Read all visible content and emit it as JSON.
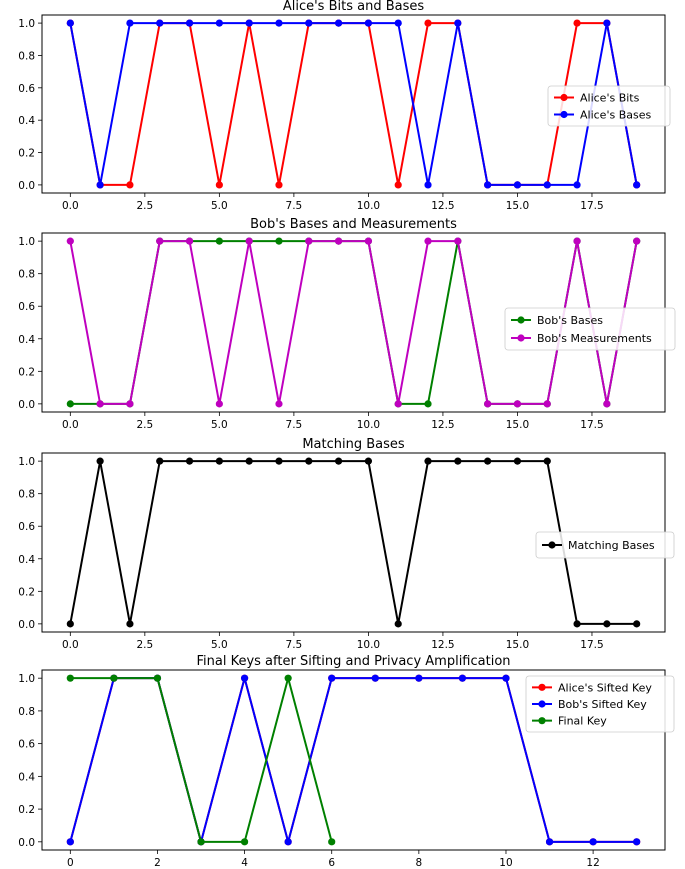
{
  "chart_data": [
    {
      "type": "line",
      "title": "Alice's Bits and Bases",
      "xlabel": "",
      "ylabel": "",
      "xlim": [
        -0.95,
        19.95
      ],
      "ylim": [
        -0.05,
        1.05
      ],
      "xticks": [
        0.0,
        2.5,
        5.0,
        7.5,
        10.0,
        12.5,
        15.0,
        17.5
      ],
      "xtick_labels": [
        "0.0",
        "2.5",
        "5.0",
        "7.5",
        "10.0",
        "12.5",
        "15.0",
        "17.5"
      ],
      "yticks": [
        0.0,
        0.2,
        0.4,
        0.6,
        0.8,
        1.0
      ],
      "ytick_labels": [
        "0.0",
        "0.2",
        "0.4",
        "0.6",
        "0.8",
        "1.0"
      ],
      "legend_position": "center-right",
      "series": [
        {
          "name": "Alice's Bits",
          "color": "#ff0000",
          "x": [
            0,
            1,
            2,
            3,
            4,
            5,
            6,
            7,
            8,
            9,
            10,
            11,
            12,
            13,
            14,
            15,
            16,
            17,
            18,
            19
          ],
          "values": [
            1,
            0,
            0,
            1,
            1,
            0,
            1,
            0,
            1,
            1,
            1,
            0,
            1,
            1,
            0,
            0,
            0,
            1,
            1,
            0
          ]
        },
        {
          "name": "Alice's Bases",
          "color": "#0000ff",
          "x": [
            0,
            1,
            2,
            3,
            4,
            5,
            6,
            7,
            8,
            9,
            10,
            11,
            12,
            13,
            14,
            15,
            16,
            17,
            18,
            19
          ],
          "values": [
            1,
            0,
            1,
            1,
            1,
            1,
            1,
            1,
            1,
            1,
            1,
            1,
            0,
            1,
            0,
            0,
            0,
            0,
            1,
            0
          ]
        }
      ]
    },
    {
      "type": "line",
      "title": "Bob's Bases and Measurements",
      "xlabel": "",
      "ylabel": "",
      "xlim": [
        -0.95,
        19.95
      ],
      "ylim": [
        -0.05,
        1.05
      ],
      "xticks": [
        0.0,
        2.5,
        5.0,
        7.5,
        10.0,
        12.5,
        15.0,
        17.5
      ],
      "xtick_labels": [
        "0.0",
        "2.5",
        "5.0",
        "7.5",
        "10.0",
        "12.5",
        "15.0",
        "17.5"
      ],
      "yticks": [
        0.0,
        0.2,
        0.4,
        0.6,
        0.8,
        1.0
      ],
      "ytick_labels": [
        "0.0",
        "0.2",
        "0.4",
        "0.6",
        "0.8",
        "1.0"
      ],
      "legend_position": "center-right",
      "series": [
        {
          "name": "Bob's Bases",
          "color": "#008000",
          "x": [
            0,
            1,
            2,
            3,
            4,
            5,
            6,
            7,
            8,
            9,
            10,
            11,
            12,
            13,
            14,
            15,
            16,
            17,
            18,
            19
          ],
          "values": [
            0,
            0,
            0,
            1,
            1,
            1,
            1,
            1,
            1,
            1,
            1,
            0,
            0,
            1,
            0,
            0,
            0,
            1,
            0,
            1
          ]
        },
        {
          "name": "Bob's Measurements",
          "color": "#bf00bf",
          "x": [
            0,
            1,
            2,
            3,
            4,
            5,
            6,
            7,
            8,
            9,
            10,
            11,
            12,
            13,
            14,
            15,
            16,
            17,
            18,
            19
          ],
          "values": [
            1,
            0,
            0,
            1,
            1,
            0,
            1,
            0,
            1,
            1,
            1,
            0,
            1,
            1,
            0,
            0,
            0,
            1,
            0,
            1
          ]
        }
      ]
    },
    {
      "type": "line",
      "title": "Matching Bases",
      "xlabel": "",
      "ylabel": "",
      "xlim": [
        -0.95,
        19.95
      ],
      "ylim": [
        -0.05,
        1.05
      ],
      "xticks": [
        0.0,
        2.5,
        5.0,
        7.5,
        10.0,
        12.5,
        15.0,
        17.5
      ],
      "xtick_labels": [
        "0.0",
        "2.5",
        "5.0",
        "7.5",
        "10.0",
        "12.5",
        "15.0",
        "17.5"
      ],
      "yticks": [
        0.0,
        0.2,
        0.4,
        0.6,
        0.8,
        1.0
      ],
      "ytick_labels": [
        "0.0",
        "0.2",
        "0.4",
        "0.6",
        "0.8",
        "1.0"
      ],
      "legend_position": "center-right",
      "series": [
        {
          "name": "Matching Bases",
          "color": "#000000",
          "x": [
            0,
            1,
            2,
            3,
            4,
            5,
            6,
            7,
            8,
            9,
            10,
            11,
            12,
            13,
            14,
            15,
            16,
            17,
            18,
            19
          ],
          "values": [
            0,
            1,
            0,
            1,
            1,
            1,
            1,
            1,
            1,
            1,
            1,
            0,
            1,
            1,
            1,
            1,
            1,
            0,
            0,
            0
          ]
        }
      ]
    },
    {
      "type": "line",
      "title": "Final Keys after Sifting and Privacy Amplification",
      "xlabel": "",
      "ylabel": "",
      "xlim": [
        -0.65,
        13.65
      ],
      "ylim": [
        -0.05,
        1.05
      ],
      "xticks": [
        0,
        2,
        4,
        6,
        8,
        10,
        12
      ],
      "xtick_labels": [
        "0",
        "2",
        "4",
        "6",
        "8",
        "10",
        "12"
      ],
      "yticks": [
        0.0,
        0.2,
        0.4,
        0.6,
        0.8,
        1.0
      ],
      "ytick_labels": [
        "0.0",
        "0.2",
        "0.4",
        "0.6",
        "0.8",
        "1.0"
      ],
      "legend_position": "top-right",
      "series": [
        {
          "name": "Alice's Sifted Key",
          "color": "#ff0000",
          "x": [
            0,
            1,
            2,
            3,
            4,
            5,
            6,
            7,
            8,
            9,
            10,
            11,
            12,
            13
          ],
          "values": [
            0,
            1,
            1,
            0,
            1,
            0,
            1,
            1,
            1,
            1,
            1,
            0,
            0,
            0
          ]
        },
        {
          "name": "Bob's Sifted Key",
          "color": "#0000ff",
          "x": [
            0,
            1,
            2,
            3,
            4,
            5,
            6,
            7,
            8,
            9,
            10,
            11,
            12,
            13
          ],
          "values": [
            0,
            1,
            1,
            0,
            1,
            0,
            1,
            1,
            1,
            1,
            1,
            0,
            0,
            0
          ]
        },
        {
          "name": "Final Key",
          "color": "#008000",
          "x": [
            0,
            1,
            2,
            3,
            4,
            5,
            6
          ],
          "values": [
            1,
            1,
            1,
            0,
            0,
            1,
            0
          ]
        }
      ]
    }
  ]
}
